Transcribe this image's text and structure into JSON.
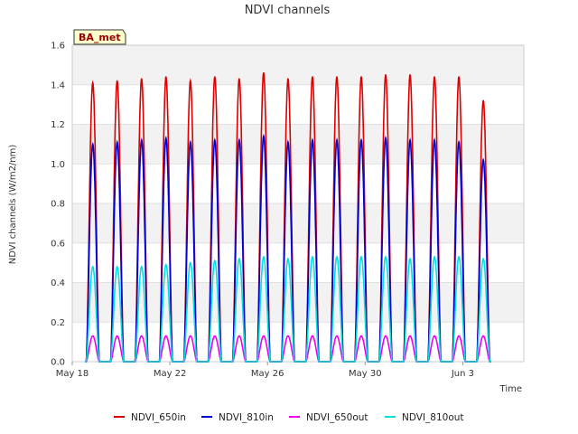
{
  "chart_data": {
    "type": "line",
    "title": "NDVI channels",
    "xlabel": "Time",
    "ylabel": "NDVI channels (W/m2/nm)",
    "site_badge": "BA_met",
    "ylim": [
      0,
      1.6
    ],
    "yticks": [
      "0.0",
      "0.2",
      "0.4",
      "0.6",
      "0.8",
      "1.0",
      "1.2",
      "1.4",
      "1.6"
    ],
    "xlim_days": [
      0,
      18.5
    ],
    "xticks": [
      {
        "label": "May 18",
        "day": 0
      },
      {
        "label": "May 22",
        "day": 4
      },
      {
        "label": "May 26",
        "day": 8
      },
      {
        "label": "May 30",
        "day": 12
      },
      {
        "label": "Jun 3",
        "day": 16
      }
    ],
    "grid": true,
    "legend_position": "bottom",
    "day_indices": [
      0,
      1,
      2,
      3,
      4,
      5,
      6,
      7,
      8,
      9,
      10,
      11,
      12,
      13,
      14,
      15,
      16
    ],
    "series": [
      {
        "name": "NDVI_650in",
        "color": "#dd0000",
        "daily_peaks": [
          1.41,
          1.42,
          1.43,
          1.44,
          1.42,
          1.44,
          1.43,
          1.46,
          1.43,
          1.44,
          1.44,
          1.44,
          1.45,
          1.45,
          1.44,
          1.44,
          1.32
        ]
      },
      {
        "name": "NDVI_810in",
        "color": "#0000cc",
        "daily_peaks": [
          1.1,
          1.11,
          1.12,
          1.13,
          1.11,
          1.12,
          1.12,
          1.14,
          1.11,
          1.12,
          1.12,
          1.12,
          1.13,
          1.12,
          1.12,
          1.11,
          1.02
        ]
      },
      {
        "name": "NDVI_650out",
        "color": "#ee00ee",
        "daily_peaks": [
          0.13,
          0.13,
          0.13,
          0.13,
          0.13,
          0.13,
          0.13,
          0.13,
          0.13,
          0.13,
          0.13,
          0.13,
          0.13,
          0.13,
          0.13,
          0.13,
          0.13
        ]
      },
      {
        "name": "NDVI_810out",
        "color": "#00e0e0",
        "daily_peaks": [
          0.48,
          0.48,
          0.48,
          0.49,
          0.5,
          0.51,
          0.52,
          0.53,
          0.52,
          0.53,
          0.53,
          0.53,
          0.53,
          0.52,
          0.53,
          0.53,
          0.52
        ]
      }
    ]
  }
}
